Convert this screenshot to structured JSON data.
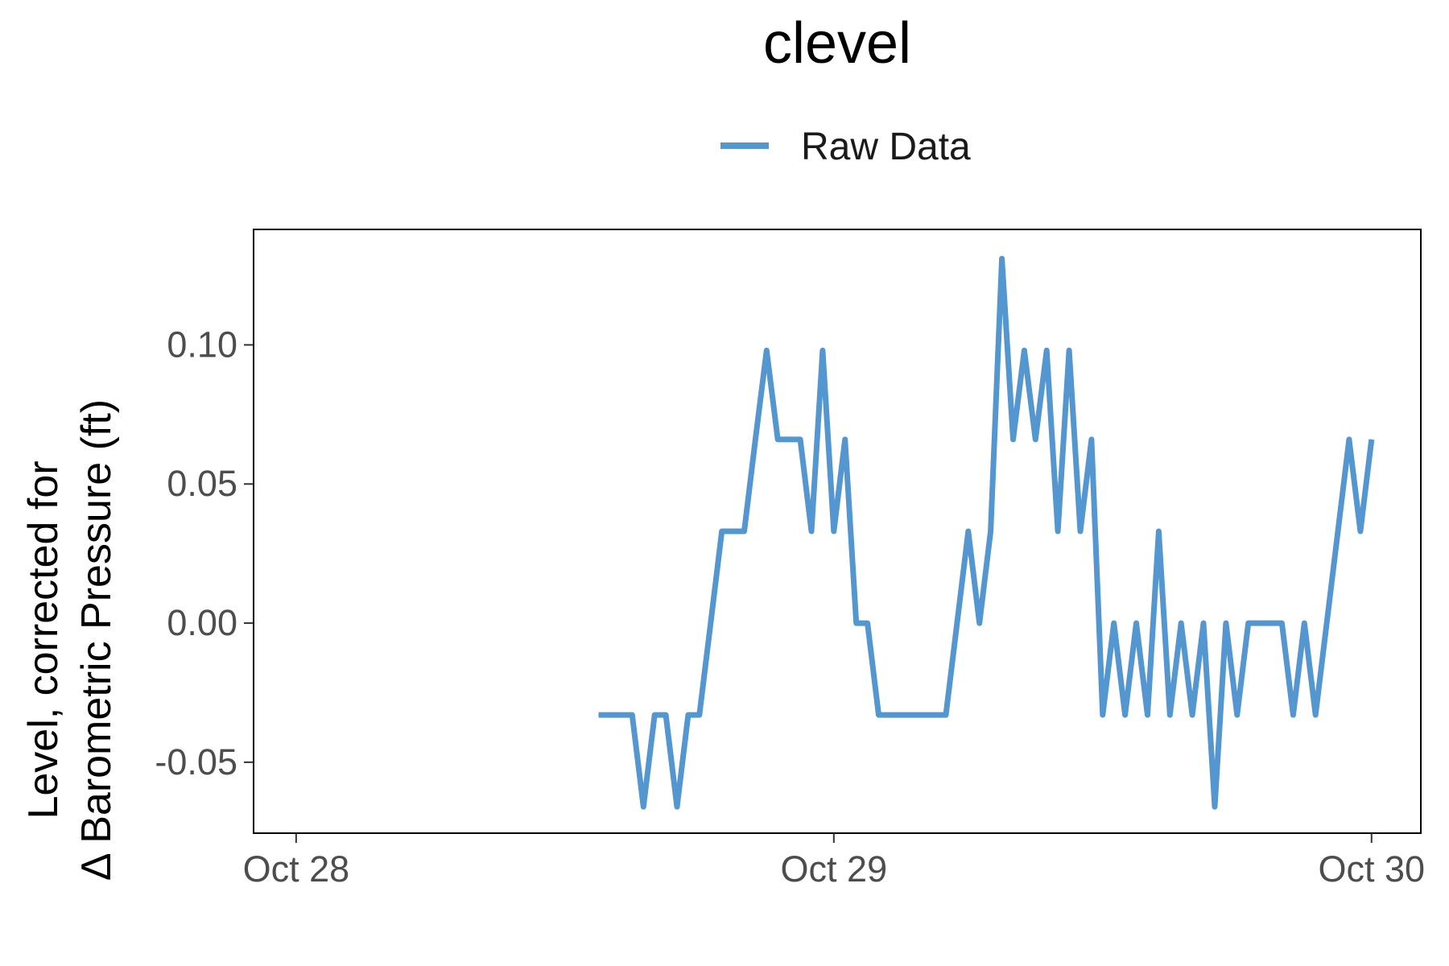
{
  "chart_data": {
    "type": "line",
    "title": "clevel",
    "xlabel": "",
    "ylabel_lines": [
      "Level, corrected for",
      "Δ Barometric Pressure (ft)"
    ],
    "xlim": [
      "2019-10-27T22:06",
      "2019-10-30T02:12"
    ],
    "ylim": [
      -0.0755,
      0.1415
    ],
    "x_ticks": [
      {
        "value": "2019-10-28T00:00",
        "label": "Oct 28"
      },
      {
        "value": "2019-10-29T00:00",
        "label": "Oct 29"
      },
      {
        "value": "2019-10-30T00:00",
        "label": "Oct 30"
      }
    ],
    "y_ticks": [
      {
        "value": -0.05,
        "label": "-0.05"
      },
      {
        "value": 0.0,
        "label": "0.00"
      },
      {
        "value": 0.05,
        "label": "0.05"
      },
      {
        "value": 0.1,
        "label": "0.10"
      }
    ],
    "grid": false,
    "legend_position": "top",
    "series": [
      {
        "name": "Raw Data",
        "color": "#5496d0",
        "x": [
          "2019-10-28T13:30",
          "2019-10-28T14:00",
          "2019-10-28T14:30",
          "2019-10-28T15:00",
          "2019-10-28T15:30",
          "2019-10-28T16:00",
          "2019-10-28T16:30",
          "2019-10-28T17:00",
          "2019-10-28T17:30",
          "2019-10-28T18:00",
          "2019-10-28T18:30",
          "2019-10-28T19:00",
          "2019-10-28T19:30",
          "2019-10-28T20:00",
          "2019-10-28T20:30",
          "2019-10-28T21:00",
          "2019-10-28T21:30",
          "2019-10-28T22:00",
          "2019-10-28T22:30",
          "2019-10-28T23:00",
          "2019-10-28T23:30",
          "2019-10-29T00:00",
          "2019-10-29T00:30",
          "2019-10-29T01:00",
          "2019-10-29T01:30",
          "2019-10-29T02:00",
          "2019-10-29T02:30",
          "2019-10-29T03:00",
          "2019-10-29T03:30",
          "2019-10-29T04:00",
          "2019-10-29T04:30",
          "2019-10-29T05:00",
          "2019-10-29T05:30",
          "2019-10-29T06:00",
          "2019-10-29T06:30",
          "2019-10-29T07:00",
          "2019-10-29T07:30",
          "2019-10-29T08:00",
          "2019-10-29T08:30",
          "2019-10-29T09:00",
          "2019-10-29T09:30",
          "2019-10-29T10:00",
          "2019-10-29T10:30",
          "2019-10-29T11:00",
          "2019-10-29T11:30",
          "2019-10-29T12:00",
          "2019-10-29T12:30",
          "2019-10-29T13:00",
          "2019-10-29T13:30",
          "2019-10-29T14:00",
          "2019-10-29T14:30",
          "2019-10-29T15:00",
          "2019-10-29T15:30",
          "2019-10-29T16:00",
          "2019-10-29T16:30",
          "2019-10-29T17:00",
          "2019-10-29T17:30",
          "2019-10-29T18:00",
          "2019-10-29T18:30",
          "2019-10-29T19:00",
          "2019-10-29T19:30",
          "2019-10-29T20:00",
          "2019-10-29T20:30",
          "2019-10-29T21:00",
          "2019-10-29T21:30",
          "2019-10-29T22:00",
          "2019-10-29T22:30",
          "2019-10-29T23:00",
          "2019-10-29T23:30",
          "2019-10-30T00:00"
        ],
        "y": [
          -0.033,
          -0.033,
          -0.033,
          -0.033,
          -0.066,
          -0.033,
          -0.033,
          -0.066,
          -0.033,
          -0.033,
          0.0,
          0.033,
          0.033,
          0.033,
          0.066,
          0.098,
          0.066,
          0.066,
          0.066,
          0.033,
          0.098,
          0.033,
          0.066,
          0.0,
          0.0,
          -0.033,
          -0.033,
          -0.033,
          -0.033,
          -0.033,
          -0.033,
          -0.033,
          0.0,
          0.033,
          0.0,
          0.033,
          0.131,
          0.066,
          0.098,
          0.066,
          0.098,
          0.033,
          0.098,
          0.033,
          0.066,
          -0.033,
          0.0,
          -0.033,
          0.0,
          -0.033,
          0.033,
          -0.033,
          0.0,
          -0.033,
          0.0,
          -0.066,
          0.0,
          -0.033,
          0.0,
          0.0,
          0.0,
          0.0,
          -0.033,
          0.0,
          -0.033,
          0.0,
          0.033,
          0.066,
          0.033,
          0.066
        ]
      }
    ]
  }
}
